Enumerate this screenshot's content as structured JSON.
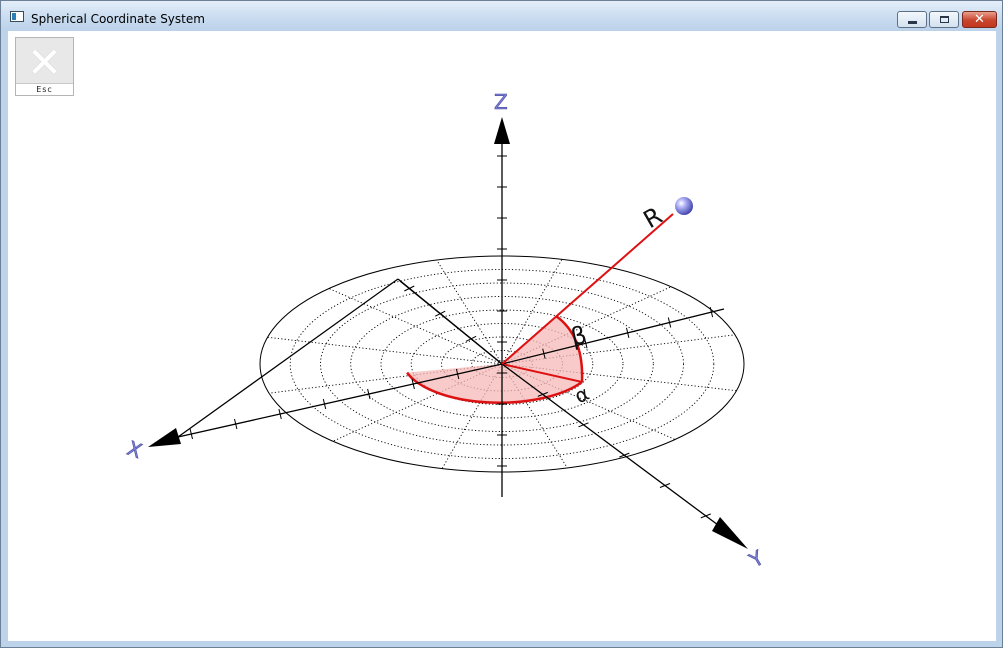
{
  "window": {
    "title": "Spherical Coordinate System",
    "buttons": {
      "minimize": "minimize",
      "maximize": "maximize",
      "close": "✕"
    }
  },
  "toolbar": {
    "esc_label": "Esc",
    "esc_icon": "close-x-icon"
  },
  "scene": {
    "axes": {
      "x_label": "X",
      "y_label": "Y",
      "z_label": "Z"
    },
    "point_label": "R",
    "angle_labels": {
      "alpha": "α",
      "beta": "β"
    },
    "colors": {
      "axis": "#000000",
      "vector": "#dd1111",
      "sector_fill": "#f7b8b8",
      "axis_label": "#7c7ed6",
      "point": "#8a8ef0"
    }
  }
}
